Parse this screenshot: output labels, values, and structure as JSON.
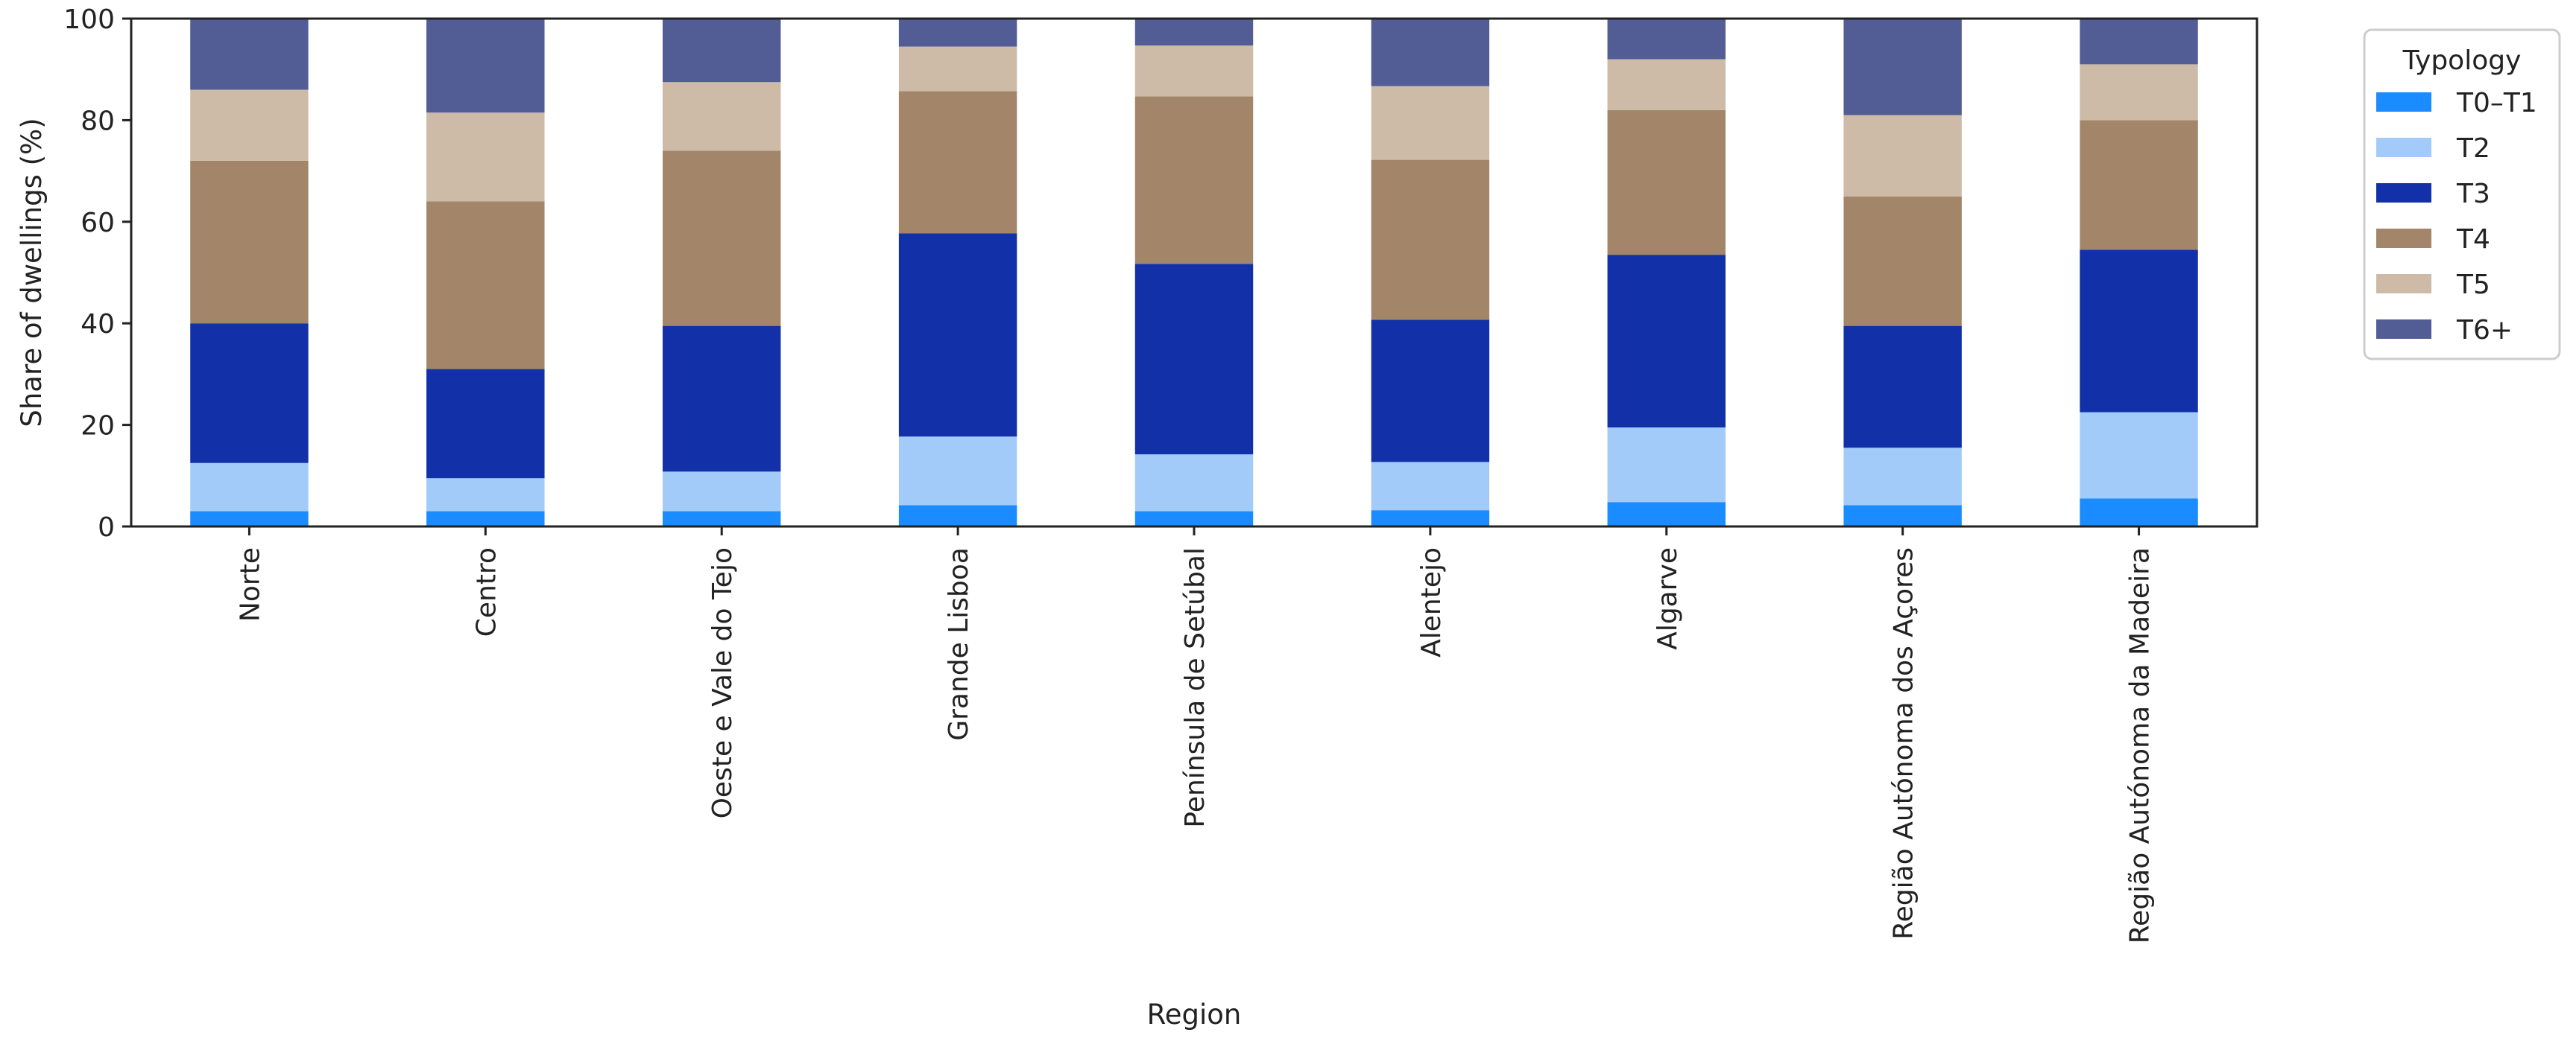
{
  "chart_data": {
    "type": "bar",
    "stacked": true,
    "categories": [
      "Norte",
      "Centro",
      "Oeste e Vale do Tejo",
      "Grande Lisboa",
      "Península de Setúbal",
      "Alentejo",
      "Algarve",
      "Região Autónoma dos Açores",
      "Região Autónoma da Madeira"
    ],
    "series": [
      {
        "name": "T0–T1",
        "color": "#1A8CFF",
        "values": [
          3.0,
          3.0,
          3.0,
          4.2,
          3.0,
          3.2,
          4.8,
          4.2,
          5.5
        ]
      },
      {
        "name": "T2",
        "color": "#A3CBFA",
        "values": [
          9.5,
          6.5,
          7.8,
          13.5,
          11.2,
          9.5,
          14.7,
          11.3,
          17.0
        ]
      },
      {
        "name": "T3",
        "color": "#1230A8",
        "values": [
          27.5,
          21.5,
          28.7,
          40.0,
          37.5,
          28.0,
          34.0,
          24.0,
          32.0
        ]
      },
      {
        "name": "T4",
        "color": "#A3866A",
        "values": [
          32.0,
          33.0,
          34.5,
          28.0,
          33.0,
          31.5,
          28.5,
          25.5,
          25.5
        ]
      },
      {
        "name": "T5",
        "color": "#CDBBA8",
        "values": [
          14.0,
          17.5,
          13.5,
          8.8,
          10.0,
          14.5,
          10.0,
          16.0,
          11.0
        ]
      },
      {
        "name": "T6+",
        "color": "#525D96",
        "values": [
          14.0,
          18.5,
          12.5,
          5.5,
          5.3,
          13.3,
          8.0,
          19.0,
          9.0
        ]
      }
    ],
    "xlabel": "Region",
    "ylabel": "Share of dwellings (%)",
    "ylim": [
      0,
      100
    ],
    "yticks": [
      0,
      20,
      40,
      60,
      80,
      100
    ],
    "grid": false,
    "legend": {
      "title": "Typology",
      "placement": "outside-top-right"
    }
  }
}
